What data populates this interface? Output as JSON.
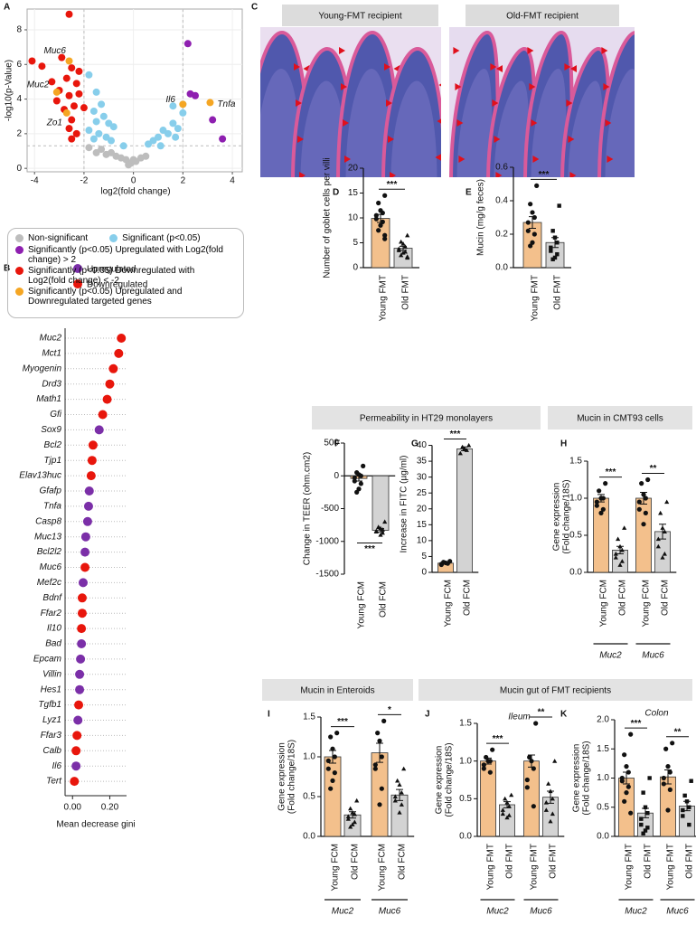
{
  "panel_labels": [
    "A",
    "B",
    "C",
    "D",
    "E",
    "F",
    "G",
    "H",
    "I",
    "J",
    "K"
  ],
  "images": [
    {
      "label": "Young-FMT recipient"
    },
    {
      "label": "Old-FMT recipient"
    }
  ],
  "headers": [
    "Permeability in HT29 monolayers",
    "Mucin in CMT93 cells",
    "Mucin in Enteroids",
    "Mucin gut of FMT recipients"
  ],
  "chart_data": [
    {
      "type": "scatter",
      "x_label": "log2(fold change)",
      "y_label": "-log10(p-Value)",
      "xlim": [
        -4.3,
        4.4
      ],
      "ylim": [
        -0.2,
        9.2
      ],
      "xticks": [
        -4,
        -2,
        0,
        2,
        4
      ],
      "yticks": [
        0,
        2,
        4,
        6,
        8
      ],
      "vlines": [
        -2,
        2
      ],
      "hline": 1.3,
      "series": [
        {
          "name": "Non-significant",
          "color": "#bdbdbd",
          "x": [
            -1.8,
            -1.5,
            -1.3,
            -1.1,
            -0.9,
            -0.7,
            -0.5,
            -0.3,
            -0.1,
            0.1,
            0.3,
            0.5,
            -0.2,
            0.0
          ],
          "values": [
            1.2,
            0.9,
            1.1,
            0.8,
            0.9,
            0.7,
            0.6,
            0.5,
            0.3,
            0.4,
            0.6,
            0.7,
            0.2,
            0.5
          ]
        },
        {
          "name": "Significant (p<0.05)",
          "color": "#87ceeb",
          "x": [
            -1.8,
            -1.5,
            -1.3,
            -1.6,
            -1.2,
            -1.5,
            -1.0,
            -0.8,
            -1.8,
            -1.4,
            -1.1,
            -0.9,
            -1.6,
            -0.4,
            0.6,
            0.8,
            1.0,
            1.2,
            1.4,
            1.6,
            1.8,
            2.0,
            1.6,
            2.0,
            1.7,
            1.1
          ],
          "values": [
            5.4,
            4.4,
            3.7,
            3.3,
            3.0,
            2.7,
            2.6,
            2.4,
            2.2,
            2.0,
            1.8,
            1.6,
            1.7,
            1.3,
            1.4,
            1.6,
            1.8,
            2.2,
            2.0,
            2.6,
            2.3,
            3.2,
            3.6,
            3.7,
            1.8,
            1.3
          ]
        },
        {
          "name": "Significantly (p<0.05) Upregulated with Log2(fold change) > 2",
          "color": "#8e1fb0",
          "x": [
            2.2,
            2.3,
            2.5,
            3.2,
            3.6
          ],
          "values": [
            7.2,
            4.3,
            4.2,
            2.8,
            1.7
          ]
        },
        {
          "name": "Significantly (p<0.05) Downregulated with Log2(fold change) < -2",
          "color": "#e8160c",
          "x": [
            -2.6,
            -4.1,
            -3.7,
            -2.9,
            -2.5,
            -2.2,
            -2.7,
            -3.3,
            -2.3,
            -3.0,
            -2.6,
            -2.2,
            -3.1,
            -2.4,
            -2.8,
            -2.0,
            -2.5,
            -2.6,
            -2.3,
            -2.5
          ],
          "values": [
            8.9,
            6.2,
            5.9,
            6.4,
            5.8,
            5.6,
            5.2,
            5.0,
            4.9,
            4.5,
            4.2,
            4.3,
            3.9,
            3.6,
            3.4,
            3.5,
            2.8,
            2.3,
            2.0,
            1.7
          ]
        },
        {
          "name": "Significantly (p<0.05) Upregulated and Downregulated targeted genes",
          "color": "#f5a623",
          "x": [
            -2.6,
            -3.1,
            -2.7,
            2.0,
            3.1
          ],
          "values": [
            6.2,
            4.4,
            3.2,
            3.7,
            3.8
          ],
          "labels": [
            "Muc6",
            "Muc2",
            "Zo1",
            "Il6",
            "Tnfa"
          ]
        }
      ]
    },
    {
      "type": "dot",
      "x_label": "Mean decrease gini",
      "xlim": [
        -0.04,
        0.29
      ],
      "xticks": [
        {
          "value": 0,
          "label": "0.00"
        },
        {
          "value": 0.2,
          "label": "0.20"
        }
      ],
      "categories": [
        "Muc2",
        "Mct1",
        "Myogenin",
        "Drd3",
        "Math1",
        "Gfi",
        "Sox9",
        "Bcl2",
        "Tjp1",
        "Elav13huc",
        "Gfafp",
        "Tnfa",
        "Casp8",
        "Muc13",
        "Bcl2l2",
        "Muc6",
        "Mef2c",
        "Bdnf",
        "Ffar2",
        "Il10",
        "Bad",
        "Epcam",
        "Villin",
        "Hes1",
        "Tgfb1",
        "Lyz1",
        "Ffar3",
        "Calb",
        "Il6",
        "Tert"
      ],
      "series": [
        {
          "name": "Upregulated",
          "color": "#7b2fa8",
          "values": [
            null,
            null,
            null,
            null,
            null,
            null,
            0.143,
            null,
            null,
            null,
            0.09,
            0.086,
            0.081,
            0.071,
            0.067,
            null,
            0.057,
            null,
            null,
            null,
            0.048,
            0.043,
            0.038,
            0.038,
            null,
            0.029,
            null,
            null,
            0.019,
            null
          ]
        },
        {
          "name": "Downregulated",
          "color": "#e8160c",
          "values": [
            0.262,
            0.248,
            0.219,
            0.2,
            0.186,
            0.162,
            null,
            0.11,
            0.105,
            0.1,
            null,
            null,
            null,
            null,
            null,
            0.067,
            null,
            0.052,
            0.052,
            0.048,
            null,
            null,
            null,
            null,
            0.033,
            null,
            0.024,
            0.019,
            null,
            0.01
          ]
        }
      ]
    },
    {
      "type": "bar",
      "y_label": "Number of goblet cells per villi",
      "ylim": [
        0,
        20
      ],
      "yticks": [
        0,
        5,
        10,
        15,
        20
      ],
      "categories": [
        "Young FMT",
        "Old FMT"
      ],
      "values": [
        9.9,
        3.9
      ],
      "errors": [
        0.8,
        0.4
      ],
      "colors": [
        "#f3c08c",
        "#d3d3d3"
      ],
      "markers": [
        "circle",
        "triangle"
      ],
      "points": [
        [
          14.5,
          13,
          11.5,
          11,
          10.5,
          9.8,
          9.2,
          8.5,
          7.5,
          6.5,
          5.8
        ],
        [
          6.5,
          5.2,
          4.8,
          4.2,
          3.8,
          3.5,
          3.2,
          3.0,
          2.5,
          2.2,
          2.0
        ]
      ],
      "annotations": [
        {
          "text": "***",
          "bars": [
            0,
            1
          ]
        }
      ]
    },
    {
      "type": "bar",
      "y_label": "Mucin (mg/g feces)",
      "ylim": [
        0,
        0.6
      ],
      "yticks": [
        {
          "value": 0,
          "label": "0.0"
        },
        0.2,
        0.4,
        0.6
      ],
      "categories": [
        "Young FMT",
        "Old FMT"
      ],
      "values": [
        0.27,
        0.15
      ],
      "errors": [
        0.035,
        0.03
      ],
      "colors": [
        "#f3c08c",
        "#d3d3d3"
      ],
      "markers": [
        "circle",
        "square"
      ],
      "points": [
        [
          0.49,
          0.38,
          0.33,
          0.3,
          0.27,
          0.22,
          0.2,
          0.15,
          0.13
        ],
        [
          0.37,
          0.22,
          0.18,
          0.15,
          0.12,
          0.1,
          0.08,
          0.06,
          0.05
        ]
      ],
      "annotations": [
        {
          "text": "***",
          "bars": [
            0,
            1
          ]
        }
      ]
    },
    {
      "type": "bar",
      "y_label": "Change in TEER (ohm.cm2)",
      "ylim": [
        -1500,
        500
      ],
      "yticks": [
        500,
        0,
        -500,
        -1000,
        -1500
      ],
      "categories": [
        "Young FCM",
        "Old FCM"
      ],
      "values": [
        -40,
        -830
      ],
      "errors": [
        40,
        25
      ],
      "colors": [
        "#f3c08c",
        "#d3d3d3"
      ],
      "markers": [
        "circle",
        "triangle"
      ],
      "points": [
        [
          150,
          50,
          20,
          0,
          -30,
          -80,
          -120,
          -200,
          -250
        ],
        [
          -700,
          -780,
          -800,
          -820,
          -840,
          -850,
          -870,
          -900
        ]
      ],
      "annotations": [
        {
          "text": "***",
          "bars": [
            0,
            1
          ]
        }
      ]
    },
    {
      "type": "bar",
      "y_label": "Increase in FITC (µg/ml)",
      "ylim": [
        0,
        43
      ],
      "yticks": [
        0,
        5,
        10,
        15,
        20,
        25,
        30,
        35,
        40
      ],
      "categories": [
        "Young FCM",
        "Old FCM"
      ],
      "values": [
        2.9,
        38.9
      ],
      "errors": [
        0.3,
        0.6
      ],
      "colors": [
        "#f3c08c",
        "#d3d3d3"
      ],
      "markers": [
        "circle",
        "triangle"
      ],
      "points": [
        [
          3.5,
          3.2,
          3.0,
          2.8,
          2.6,
          2.4
        ],
        [
          40,
          39.5,
          39,
          38.5,
          37.5
        ]
      ],
      "annotations": [
        {
          "text": "***",
          "bars": [
            0,
            1
          ]
        }
      ]
    },
    {
      "type": "bar",
      "y_label": [
        "Gene expression",
        "(Fold change/18S)"
      ],
      "ylim": [
        0,
        1.5
      ],
      "yticks": [
        {
          "value": 0,
          "label": "0.0"
        },
        0.5,
        {
          "value": 1,
          "label": "1.0"
        },
        1.5
      ],
      "categories": [
        "Young FCM",
        "Old FCM",
        "Young FCM",
        "Old FCM"
      ],
      "groups": [
        "Muc2",
        "Muc6"
      ],
      "values": [
        1.0,
        0.3,
        1.0,
        0.55
      ],
      "errors": [
        0.05,
        0.05,
        0.08,
        0.1
      ],
      "colors": [
        "#f3c08c",
        "#d3d3d3",
        "#f3c08c",
        "#d3d3d3"
      ],
      "markers": [
        "circle",
        "triangle",
        "circle",
        "triangle"
      ],
      "points": [
        [
          1.2,
          1.1,
          1.0,
          1.0,
          0.95,
          0.9,
          0.85,
          0.8
        ],
        [
          0.6,
          0.45,
          0.35,
          0.3,
          0.25,
          0.2,
          0.15,
          0.1
        ],
        [
          1.25,
          1.2,
          1.05,
          1.0,
          0.95,
          0.85,
          0.8,
          0.65
        ],
        [
          0.95,
          0.8,
          0.6,
          0.55,
          0.45,
          0.35,
          0.25,
          0.2
        ]
      ],
      "annotations": [
        {
          "text": "***",
          "bars": [
            0,
            1
          ]
        },
        {
          "text": "**",
          "bars": [
            2,
            3
          ]
        }
      ]
    },
    {
      "type": "bar",
      "y_label": [
        "Gene expression",
        "(Fold change/18S)"
      ],
      "ylim": [
        0,
        1.5
      ],
      "yticks": [
        {
          "value": 0,
          "label": "0.0"
        },
        0.5,
        {
          "value": 1,
          "label": "1.0"
        },
        1.5
      ],
      "categories": [
        "Young FCM",
        "Old FCM",
        "Young FCM",
        "Old FCM"
      ],
      "groups": [
        "Muc2",
        "Muc6"
      ],
      "values": [
        1.0,
        0.27,
        1.05,
        0.52
      ],
      "errors": [
        0.08,
        0.04,
        0.12,
        0.07
      ],
      "colors": [
        "#f3c08c",
        "#d3d3d3",
        "#f3c08c",
        "#d3d3d3"
      ],
      "markers": [
        "circle",
        "triangle",
        "circle",
        "triangle"
      ],
      "points": [
        [
          1.3,
          1.25,
          1.1,
          1.0,
          0.95,
          0.85,
          0.8,
          0.7,
          0.6
        ],
        [
          0.45,
          0.35,
          0.3,
          0.28,
          0.25,
          0.22,
          0.18,
          0.15,
          0.12
        ],
        [
          1.45,
          1.3,
          1.2,
          1.0,
          0.9,
          0.85,
          0.6,
          0.4
        ],
        [
          0.85,
          0.7,
          0.65,
          0.55,
          0.5,
          0.45,
          0.4,
          0.3
        ]
      ],
      "annotations": [
        {
          "text": "***",
          "bars": [
            0,
            1
          ]
        },
        {
          "text": "*",
          "bars": [
            2,
            3
          ]
        }
      ]
    },
    {
      "type": "bar",
      "subtitle": "Ileum",
      "y_label": [
        "Gene expression",
        "(Fold change/18S)"
      ],
      "ylim": [
        0,
        1.5
      ],
      "yticks": [
        {
          "value": 0,
          "label": "0.0"
        },
        0.5,
        {
          "value": 1,
          "label": "1.0"
        },
        1.5
      ],
      "categories": [
        "Young FMT",
        "Old FMT",
        "Young FMT",
        "Old FMT"
      ],
      "groups": [
        "Muc2",
        "Muc6"
      ],
      "values": [
        1.0,
        0.42,
        1.0,
        0.52
      ],
      "errors": [
        0.04,
        0.04,
        0.08,
        0.08
      ],
      "colors": [
        "#f3c08c",
        "#d3d3d3",
        "#f3c08c",
        "#d3d3d3"
      ],
      "markers": [
        "circle",
        "triangle",
        "circle",
        "triangle"
      ],
      "points": [
        [
          1.15,
          1.05,
          1.0,
          1.0,
          0.95,
          0.9,
          0.85
        ],
        [
          0.55,
          0.5,
          0.45,
          0.4,
          0.35,
          0.3,
          0.28,
          0.25
        ],
        [
          1.5,
          1.05,
          1.0,
          0.9,
          0.75,
          0.65,
          0.4
        ],
        [
          1.0,
          0.7,
          0.6,
          0.5,
          0.45,
          0.35,
          0.3,
          0.2
        ]
      ],
      "annotations": [
        {
          "text": "***",
          "bars": [
            0,
            1
          ]
        },
        {
          "text": "**",
          "bars": [
            2,
            3
          ]
        }
      ]
    },
    {
      "type": "bar",
      "subtitle": "Colon",
      "y_label": [
        "Gene expression",
        "(Fold change/18S)"
      ],
      "ylim": [
        0,
        2
      ],
      "yticks": [
        {
          "value": 0,
          "label": "0.0"
        },
        0.5,
        {
          "value": 1,
          "label": "1.0"
        },
        1.5,
        {
          "value": 2,
          "label": "2.0"
        }
      ],
      "categories": [
        "Young FMT",
        "Old FMT",
        "Young FMT",
        "Old FMT"
      ],
      "groups": [
        "Muc2",
        "Muc6"
      ],
      "values": [
        1.0,
        0.4,
        1.02,
        0.52
      ],
      "errors": [
        0.1,
        0.08,
        0.12,
        0.08
      ],
      "colors": [
        "#f3c08c",
        "#d3d3d3",
        "#f3c08c",
        "#d3d3d3"
      ],
      "markers": [
        "circle",
        "square",
        "circle",
        "square"
      ],
      "points": [
        [
          1.75,
          1.4,
          1.2,
          1.1,
          1.0,
          0.95,
          0.85,
          0.75,
          0.6,
          0.4
        ],
        [
          1.0,
          0.75,
          0.5,
          0.4,
          0.3,
          0.2,
          0.15,
          0.1,
          0.05
        ],
        [
          1.6,
          1.5,
          1.2,
          1.1,
          1.0,
          0.9,
          0.8,
          0.45
        ],
        [
          0.95,
          0.7,
          0.6,
          0.5,
          0.45,
          0.35,
          0.2
        ]
      ],
      "annotations": [
        {
          "text": "***",
          "bars": [
            0,
            1
          ]
        },
        {
          "text": "**",
          "bars": [
            2,
            3
          ]
        }
      ]
    }
  ]
}
